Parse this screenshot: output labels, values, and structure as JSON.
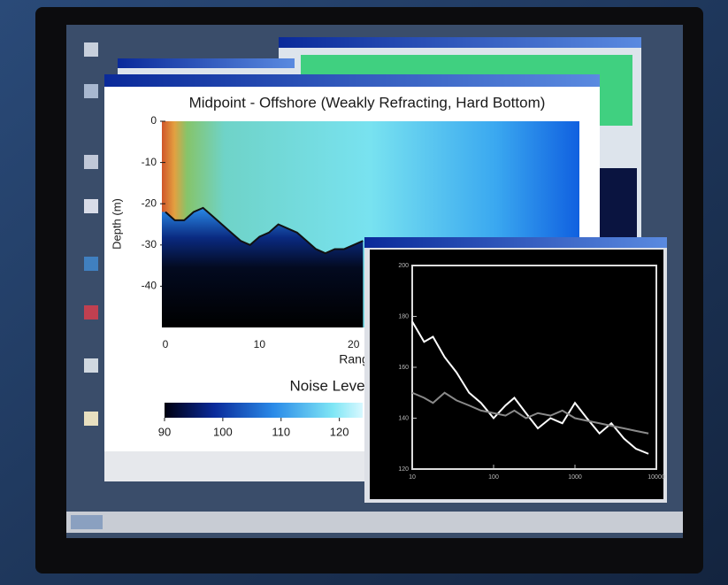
{
  "chart_data": [
    {
      "type": "line",
      "title": "Midpoint - Offshore (Weakly Refracting, Hard Bottom)",
      "xlabel": "Rang",
      "ylabel": "Depth (m)",
      "x": [
        0,
        1,
        2,
        3,
        4,
        5,
        6,
        7,
        8,
        9,
        10,
        11,
        12,
        13,
        14,
        15,
        16,
        17,
        18,
        19,
        20,
        21
      ],
      "series": [
        {
          "color": "#111111",
          "values": [
            -22,
            -24,
            -24,
            -22,
            -21,
            -23,
            -25,
            -27,
            -29,
            -30,
            -28,
            -27,
            -25,
            -26,
            -27,
            -29,
            -31,
            -32,
            -31,
            -31,
            -30,
            -29
          ]
        }
      ],
      "xlim": [
        0,
        44
      ],
      "ylim": [
        -50,
        0
      ],
      "xticks": [
        0,
        10,
        20
      ],
      "yticks": [
        0,
        -10,
        -20,
        -30,
        -40
      ],
      "colorbar": {
        "label": "Noise Leve",
        "lim": [
          90,
          124
        ],
        "ticks": [
          90,
          100,
          110,
          120
        ]
      }
    },
    {
      "type": "line",
      "log_x": true,
      "x": [
        10,
        14,
        18,
        25,
        35,
        50,
        70,
        100,
        140,
        180,
        250,
        350,
        500,
        700,
        1000,
        1400,
        2000,
        2800,
        4000,
        5600,
        8000
      ],
      "series": [
        {
          "color": "#ffffff",
          "values": [
            178,
            170,
            172,
            164,
            158,
            150,
            146,
            140,
            145,
            148,
            142,
            136,
            140,
            138,
            146,
            140,
            134,
            138,
            132,
            128,
            126
          ]
        },
        {
          "color": "#8a8a8a",
          "values": [
            150,
            148,
            146,
            150,
            147,
            145,
            143,
            142,
            141,
            143,
            140,
            142,
            141,
            143,
            140,
            139,
            138,
            137,
            136,
            135,
            134
          ]
        }
      ],
      "xlim": [
        10,
        10000
      ],
      "ylim": [
        120,
        200
      ],
      "xticks": [
        10,
        100,
        1000,
        10000
      ],
      "yticks": [
        120,
        140,
        160,
        180,
        200
      ]
    }
  ]
}
